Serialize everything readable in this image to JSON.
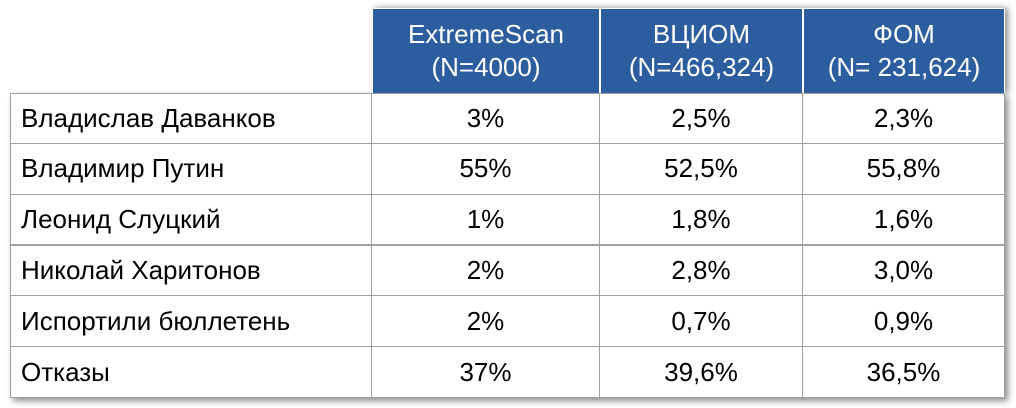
{
  "table": {
    "columns": [
      {
        "label": "ExtremeScan",
        "sample": "(N=4000)"
      },
      {
        "label": "ВЦИОМ",
        "sample": "(N=466,324)"
      },
      {
        "label": "ФОМ",
        "sample": "(N= 231,624)"
      }
    ],
    "rows": [
      [
        "Владислав Даванков",
        "3%",
        "2,5%",
        "2,3%"
      ],
      [
        "Владимир Путин",
        "55%",
        "52,5%",
        "55,8%"
      ],
      [
        "Леонид Слуцкий",
        "1%",
        "1,8%",
        "1,6%"
      ],
      [
        "Николай Харитонов",
        "2%",
        "2,8%",
        "3,0%"
      ],
      [
        "Испортили бюллетень",
        "2%",
        "0,7%",
        "0,9%"
      ],
      [
        "Отказы",
        "37%",
        "39,6%",
        "36,5%"
      ]
    ]
  }
}
